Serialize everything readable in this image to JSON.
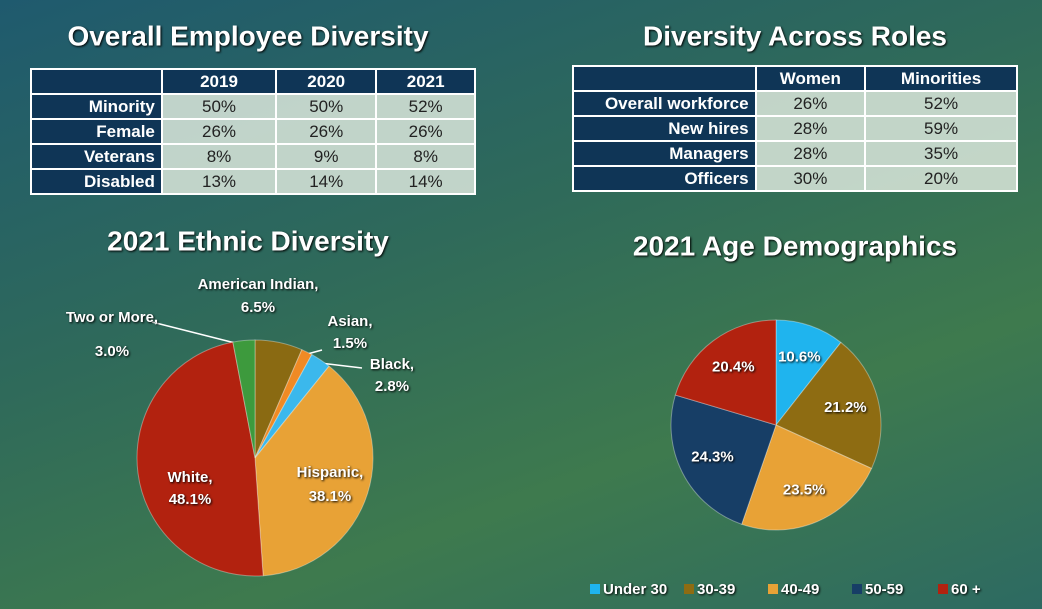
{
  "tables": [
    {
      "title": "Overall Employee Diversity",
      "columns": [
        "2019",
        "2020",
        "2021"
      ],
      "rows": [
        [
          "Minority",
          "50%",
          "50%",
          "52%"
        ],
        [
          "Female",
          "26%",
          "26%",
          "26%"
        ],
        [
          "Veterans",
          "8%",
          "9%",
          "8%"
        ],
        [
          "Disabled",
          "13%",
          "14%",
          "14%"
        ]
      ]
    },
    {
      "title": "Diversity Across Roles",
      "columns": [
        "Women",
        "Minorities"
      ],
      "rows": [
        [
          "Overall workforce",
          "26%",
          "52%"
        ],
        [
          "New hires",
          "28%",
          "59%"
        ],
        [
          "Managers",
          "28%",
          "35%"
        ],
        [
          "Officers",
          "30%",
          "20%"
        ]
      ]
    }
  ],
  "chart_data": [
    {
      "type": "pie",
      "title": "2021 Ethnic Diversity",
      "categories": [
        "American Indian,",
        "Asian,",
        "Black,",
        "Hispanic,",
        "White,",
        "Two or More,"
      ],
      "values": [
        6.5,
        1.5,
        2.8,
        38.1,
        48.1,
        3.0
      ],
      "value_labels": [
        "6.5%",
        "1.5%",
        "2.8%",
        "38.1%",
        "48.1%",
        "3.0%"
      ],
      "colors": [
        "#8a6a12",
        "#f08a24",
        "#3bb8ec",
        "#e8a236",
        "#b2220f",
        "#3d9a3d"
      ]
    },
    {
      "type": "pie",
      "title": "2021 Age Demographics",
      "categories": [
        "Under 30",
        "30-39",
        "40-49",
        "50-59",
        "60 +"
      ],
      "values": [
        10.6,
        21.2,
        23.5,
        24.3,
        20.4
      ],
      "value_labels": [
        "10.6%",
        "21.2%",
        "23.5%",
        "24.3%",
        "20.4%"
      ],
      "colors": [
        "#1fb4ee",
        "#8e6c12",
        "#e8a236",
        "#173e66",
        "#b2220f"
      ],
      "legend": "bottom"
    }
  ]
}
